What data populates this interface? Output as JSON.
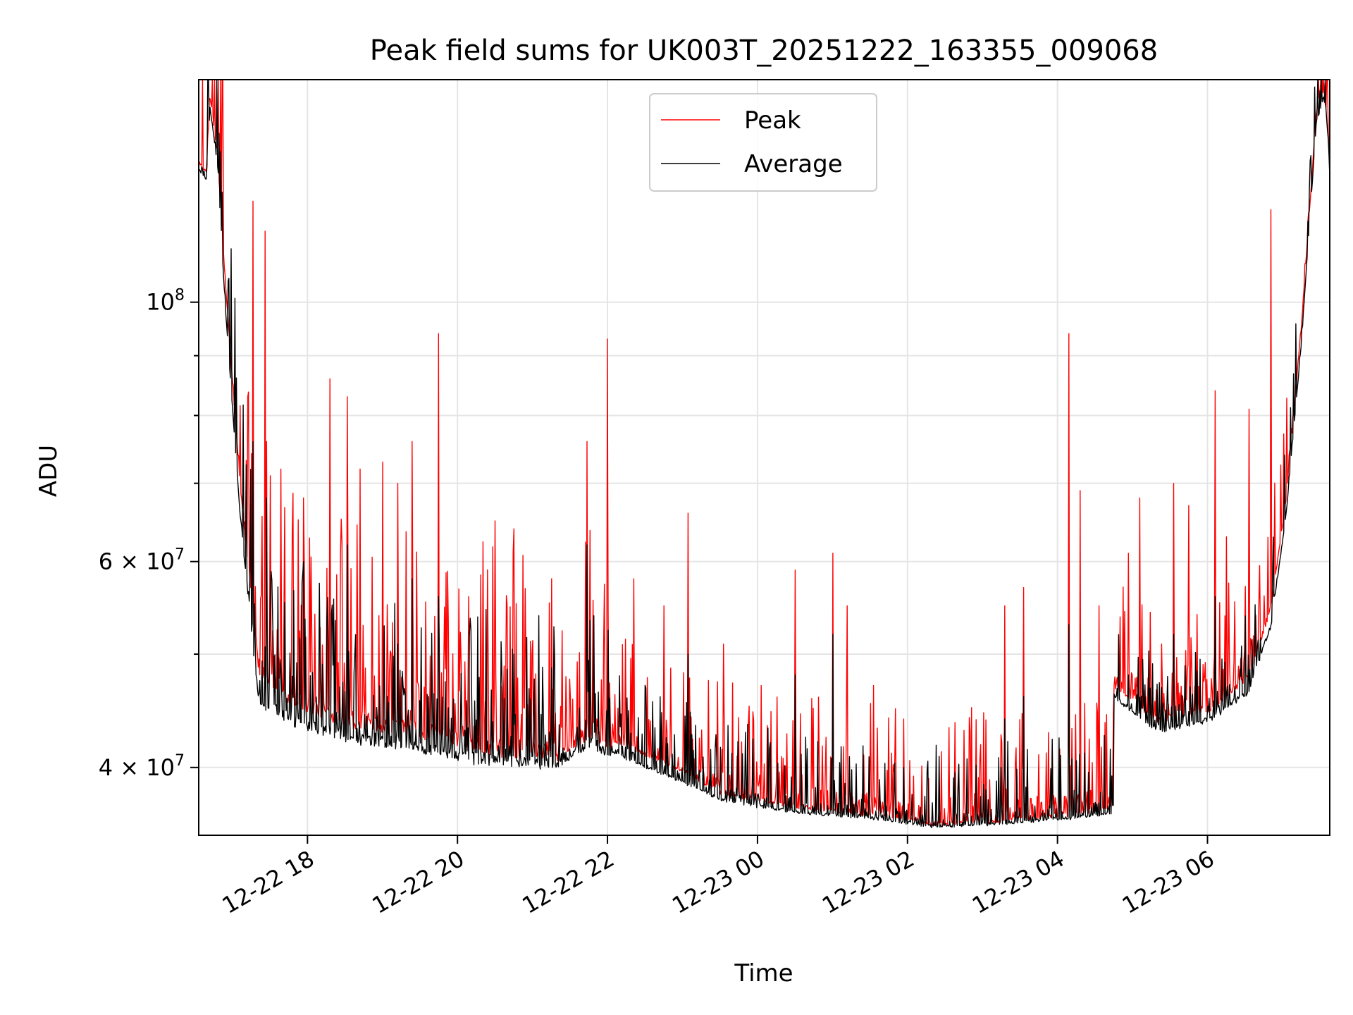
{
  "chart_data": {
    "type": "line",
    "title": "Peak field sums for UK003T_20251222_163355_009068",
    "xlabel": "Time",
    "ylabel": "ADU",
    "yscale": "log",
    "x_range_hours_from_start": [
      0,
      15.08
    ],
    "x_origin": "2025-12-22 16:33",
    "ylim": [
      35000000,
      155000000
    ],
    "grid": true,
    "legend_position": "upper center",
    "x_ticks": [
      {
        "label": "12-22 18",
        "hour": 1.45
      },
      {
        "label": "12-22 20",
        "hour": 3.45
      },
      {
        "label": "12-22 22",
        "hour": 5.45
      },
      {
        "label": "12-23 00",
        "hour": 7.45
      },
      {
        "label": "12-23 02",
        "hour": 9.45
      },
      {
        "label": "12-23 04",
        "hour": 11.45
      },
      {
        "label": "12-23 06",
        "hour": 13.45
      }
    ],
    "y_ticks_major": [
      {
        "value": 40000000,
        "base": "4 × 10",
        "exp": "7"
      },
      {
        "value": 60000000,
        "base": "6 × 10",
        "exp": "7"
      },
      {
        "value": 100000000,
        "base": "10",
        "exp": "8"
      }
    ],
    "y_ticks_minor": [
      50000000,
      70000000,
      80000000,
      90000000
    ],
    "series": [
      {
        "name": "Peak",
        "color": "#ff0000",
        "baseline": [
          [
            0.0,
            132000000
          ],
          [
            0.1,
            129000000
          ],
          [
            0.15,
            150000000
          ],
          [
            0.25,
            134000000
          ],
          [
            0.35,
            105000000
          ],
          [
            0.55,
            70000000
          ],
          [
            0.8,
            49000000
          ],
          [
            1.2,
            46000000
          ],
          [
            2.0,
            44000000
          ],
          [
            3.0,
            43000000
          ],
          [
            4.0,
            41500000
          ],
          [
            4.8,
            41500000
          ],
          [
            5.2,
            43000000
          ],
          [
            5.6,
            42000000
          ],
          [
            6.2,
            40500000
          ],
          [
            7.0,
            38000000
          ],
          [
            8.0,
            37000000
          ],
          [
            9.0,
            36500000
          ],
          [
            9.8,
            35800000
          ],
          [
            10.6,
            36000000
          ],
          [
            11.6,
            36500000
          ],
          [
            12.2,
            37000000
          ],
          [
            12.2,
            47000000
          ],
          [
            12.8,
            44000000
          ],
          [
            13.5,
            45000000
          ],
          [
            14.0,
            48000000
          ],
          [
            14.3,
            55000000
          ],
          [
            14.5,
            68000000
          ],
          [
            14.7,
            95000000
          ],
          [
            14.9,
            145000000
          ],
          [
            15.0,
            152000000
          ],
          [
            15.06,
            140000000
          ],
          [
            15.08,
            130000000
          ]
        ],
        "spikes": [
          [
            0.35,
            105000000
          ],
          [
            0.72,
            122000000
          ],
          [
            0.88,
            115000000
          ],
          [
            0.9,
            76000000
          ],
          [
            1.1,
            72000000
          ],
          [
            1.4,
            68000000
          ],
          [
            1.75,
            86000000
          ],
          [
            1.98,
            83000000
          ],
          [
            2.15,
            72000000
          ],
          [
            2.45,
            73000000
          ],
          [
            2.65,
            70000000
          ],
          [
            2.85,
            76000000
          ],
          [
            3.2,
            94000000
          ],
          [
            3.6,
            56000000
          ],
          [
            3.95,
            65000000
          ],
          [
            4.2,
            64000000
          ],
          [
            4.7,
            58000000
          ],
          [
            5.18,
            76000000
          ],
          [
            5.45,
            93000000
          ],
          [
            5.8,
            58000000
          ],
          [
            6.2,
            55000000
          ],
          [
            6.52,
            66000000
          ],
          [
            7.0,
            51000000
          ],
          [
            7.5,
            47000000
          ],
          [
            7.95,
            59000000
          ],
          [
            8.45,
            61000000
          ],
          [
            8.65,
            55000000
          ],
          [
            9.0,
            47000000
          ],
          [
            9.4,
            44000000
          ],
          [
            10.3,
            45000000
          ],
          [
            10.75,
            55000000
          ],
          [
            11.0,
            57000000
          ],
          [
            11.6,
            94000000
          ],
          [
            11.75,
            69000000
          ],
          [
            12.0,
            55000000
          ],
          [
            12.4,
            61000000
          ],
          [
            12.55,
            68000000
          ],
          [
            13.0,
            70000000
          ],
          [
            13.2,
            67000000
          ],
          [
            13.55,
            84000000
          ],
          [
            13.7,
            63000000
          ],
          [
            14.0,
            81000000
          ],
          [
            14.3,
            120000000
          ]
        ]
      },
      {
        "name": "Average",
        "color": "#000000",
        "baseline": [
          [
            0.0,
            130000000
          ],
          [
            0.1,
            127000000
          ],
          [
            0.15,
            147000000
          ],
          [
            0.25,
            131000000
          ],
          [
            0.35,
            100000000
          ],
          [
            0.55,
            66000000
          ],
          [
            0.8,
            46000000
          ],
          [
            1.2,
            44000000
          ],
          [
            2.0,
            42500000
          ],
          [
            3.0,
            41500000
          ],
          [
            4.0,
            40500000
          ],
          [
            4.8,
            40500000
          ],
          [
            5.2,
            42000000
          ],
          [
            5.6,
            41000000
          ],
          [
            6.2,
            39500000
          ],
          [
            7.0,
            37500000
          ],
          [
            8.0,
            36600000
          ],
          [
            9.0,
            36200000
          ],
          [
            9.8,
            35600000
          ],
          [
            10.6,
            35800000
          ],
          [
            11.6,
            36200000
          ],
          [
            12.2,
            36600000
          ],
          [
            12.2,
            46000000
          ],
          [
            12.8,
            43000000
          ],
          [
            13.5,
            44000000
          ],
          [
            14.0,
            46500000
          ],
          [
            14.3,
            53000000
          ],
          [
            14.5,
            66000000
          ],
          [
            14.7,
            92000000
          ],
          [
            14.9,
            142000000
          ],
          [
            15.0,
            150000000
          ],
          [
            15.06,
            138000000
          ],
          [
            15.08,
            128000000
          ]
        ],
        "spikes": [
          [
            0.72,
            76000000
          ],
          [
            0.9,
            68000000
          ],
          [
            1.4,
            60000000
          ],
          [
            1.98,
            62000000
          ],
          [
            2.85,
            58000000
          ],
          [
            3.2,
            56000000
          ],
          [
            4.2,
            50000000
          ],
          [
            5.18,
            62000000
          ],
          [
            6.52,
            50000000
          ],
          [
            7.95,
            48000000
          ],
          [
            8.45,
            52000000
          ],
          [
            9.4,
            40000000
          ],
          [
            10.75,
            44000000
          ],
          [
            11.0,
            46000000
          ],
          [
            11.6,
            53000000
          ],
          [
            12.4,
            48000000
          ],
          [
            13.0,
            52000000
          ],
          [
            13.55,
            56000000
          ]
        ]
      }
    ]
  }
}
